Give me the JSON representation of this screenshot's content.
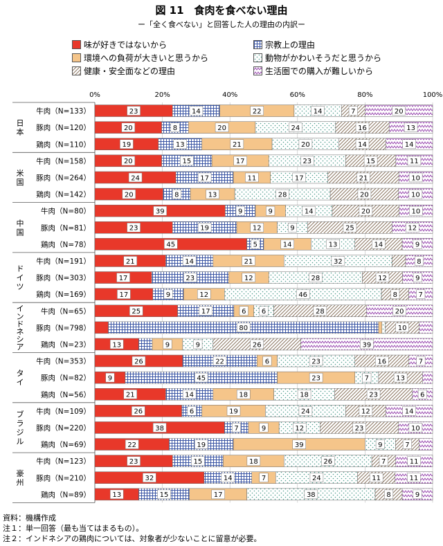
{
  "title": "図 11　食肉を食べない理由",
  "subtitle": "ー「全く食べない」と回答した人の理由の内訳ー",
  "notes": [
    "資料：機構作成",
    "注１：単一回答（最も当てはまるもの）。",
    "注２：インドネシアの鶏肉については、対象者が少ないことに留意が必要。"
  ],
  "chart_data": {
    "type": "bar",
    "orientation": "horizontal",
    "stacked": "percent",
    "xlim": [
      0,
      100
    ],
    "x_ticks": [
      "0%",
      "20%",
      "40%",
      "60%",
      "80%",
      "100%"
    ],
    "legend_position": "top",
    "series": [
      {
        "name": "味が好きではないから",
        "color": "#e8382a",
        "pattern": "solid"
      },
      {
        "name": "宗教上の理由",
        "color": "#3a55a4",
        "pattern": "grid"
      },
      {
        "name": "環境への負荷が大きいと思うから",
        "color": "#f5c58a",
        "pattern": "solid"
      },
      {
        "name": "動物がかわいそうだと思うから",
        "color": "#4a9a8a",
        "pattern": "dots"
      },
      {
        "name": "健康・安全面などの理由",
        "color": "#8a7560",
        "pattern": "diagonal"
      },
      {
        "name": "生活圏での購入が難しいから",
        "color": "#9a4ab0",
        "pattern": "zigzag"
      }
    ],
    "groups": [
      {
        "name": "日本",
        "rows": [
          {
            "label": "牛肉（N=133）",
            "values": [
              23,
              14,
              22,
              14,
              7,
              20
            ]
          },
          {
            "label": "豚肉（N=120）",
            "values": [
              20,
              8,
              20,
              24,
              16,
              13
            ]
          },
          {
            "label": "鶏肉（N=110）",
            "values": [
              19,
              13,
              21,
              20,
              14,
              14
            ]
          }
        ]
      },
      {
        "name": "米国",
        "rows": [
          {
            "label": "牛肉（N=158）",
            "values": [
              20,
              15,
              17,
              23,
              15,
              11
            ]
          },
          {
            "label": "豚肉（N=264）",
            "values": [
              24,
              17,
              11,
              17,
              21,
              10
            ]
          },
          {
            "label": "鶏肉（N=142）",
            "values": [
              20,
              8,
              13,
              28,
              20,
              10
            ]
          }
        ]
      },
      {
        "name": "中国",
        "rows": [
          {
            "label": "牛肉（N=80）",
            "values": [
              39,
              9,
              9,
              14,
              20,
              10
            ]
          },
          {
            "label": "豚肉（N=81）",
            "values": [
              23,
              19,
              12,
              9,
              25,
              12
            ]
          },
          {
            "label": "鶏肉（N=78）",
            "values": [
              45,
              5,
              14,
              13,
              14,
              9
            ]
          }
        ]
      },
      {
        "name": "ドイツ",
        "rows": [
          {
            "label": "牛肉（N=191）",
            "values": [
              21,
              14,
              21,
              32,
              4,
              8
            ]
          },
          {
            "label": "豚肉（N=303）",
            "values": [
              17,
              23,
              12,
              28,
              12,
              9
            ]
          },
          {
            "label": "鶏肉（N=169）",
            "values": [
              17,
              9,
              12,
              46,
              8,
              7
            ]
          }
        ]
      },
      {
        "name": "インドネシア",
        "rows": [
          {
            "label": "牛肉（N=65）",
            "values": [
              25,
              17,
              6,
              6,
              28,
              20
            ]
          },
          {
            "label": "豚肉（N=798）",
            "values": [
              4,
              80,
              1,
              1,
              10,
              4
            ]
          },
          {
            "label": "鶏肉（N=23）",
            "values": [
              13,
              4,
              9,
              9,
              26,
              39
            ]
          }
        ]
      },
      {
        "name": "タイ",
        "rows": [
          {
            "label": "牛肉（N=353）",
            "values": [
              26,
              22,
              6,
              23,
              16,
              7
            ]
          },
          {
            "label": "豚肉（N=82）",
            "values": [
              9,
              45,
              23,
              7,
              13,
              3
            ]
          },
          {
            "label": "鶏肉（N=56）",
            "values": [
              21,
              14,
              18,
              18,
              23,
              6
            ]
          }
        ]
      },
      {
        "name": "ブラジル",
        "rows": [
          {
            "label": "牛肉（N=109）",
            "values": [
              26,
              6,
              19,
              24,
              12,
              14
            ]
          },
          {
            "label": "豚肉（N=220）",
            "values": [
              38,
              7,
              9,
              12,
              23,
              10
            ]
          },
          {
            "label": "鶏肉（N=69）",
            "values": [
              22,
              19,
              39,
              9,
              7,
              4
            ]
          }
        ]
      },
      {
        "name": "豪州",
        "rows": [
          {
            "label": "牛肉（N=123）",
            "values": [
              23,
              15,
              18,
              26,
              7,
              11
            ]
          },
          {
            "label": "豚肉（N=210）",
            "values": [
              32,
              14,
              7,
              24,
              11,
              11
            ]
          },
          {
            "label": "鶏肉（N=89）",
            "values": [
              13,
              15,
              17,
              38,
              8,
              9
            ]
          }
        ]
      }
    ]
  }
}
